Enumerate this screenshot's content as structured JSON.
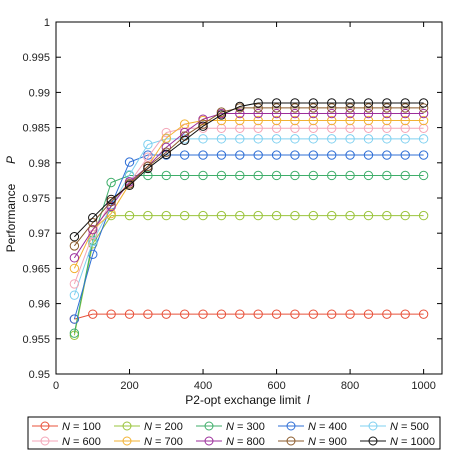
{
  "chart_data": {
    "type": "line",
    "xlabel": "P2-opt exchange limit",
    "xlabel_symbol": "l",
    "ylabel": "Performance",
    "ylabel_symbol": "P",
    "xlim": [
      0,
      1050
    ],
    "ylim": [
      0.95,
      1.0
    ],
    "xticks": [
      0,
      200,
      400,
      600,
      800,
      1000
    ],
    "yticks": [
      0.95,
      0.955,
      0.96,
      0.965,
      0.97,
      0.975,
      0.98,
      0.985,
      0.99,
      0.995,
      1
    ],
    "ytick_labels": [
      "0.95",
      "0.955",
      "0.96",
      "0.965",
      "0.97",
      "0.975",
      "0.98",
      "0.985",
      "0.99",
      "0.995",
      "1"
    ],
    "x": [
      50,
      100,
      150,
      200,
      250,
      300,
      350,
      400,
      450,
      500,
      550,
      600,
      650,
      700,
      750,
      800,
      850,
      900,
      950,
      1000
    ],
    "legend_position": "bottom",
    "series": [
      {
        "name": "N = 100",
        "label_var": "N",
        "label_val": "= 100",
        "color": "#e8513a",
        "values": [
          0.9578,
          0.9585,
          0.9585,
          0.9585,
          0.9585,
          0.9585,
          0.9585,
          0.9585,
          0.9585,
          0.9585,
          0.9585,
          0.9585,
          0.9585,
          0.9585,
          0.9585,
          0.9585,
          0.9585,
          0.9585,
          0.9585,
          0.9585
        ]
      },
      {
        "name": "N = 200",
        "label_var": "N",
        "label_val": "= 200",
        "color": "#9ac43c",
        "values": [
          0.9555,
          0.9685,
          0.9725,
          0.9725,
          0.9725,
          0.9725,
          0.9725,
          0.9725,
          0.9725,
          0.9725,
          0.9725,
          0.9725,
          0.9725,
          0.9725,
          0.9725,
          0.9725,
          0.9725,
          0.9725,
          0.9725,
          0.9725
        ]
      },
      {
        "name": "N = 300",
        "label_var": "N",
        "label_val": "= 300",
        "color": "#3fae6a",
        "values": [
          0.9558,
          0.969,
          0.9772,
          0.9782,
          0.9782,
          0.9782,
          0.9782,
          0.9782,
          0.9782,
          0.9782,
          0.9782,
          0.9782,
          0.9782,
          0.9782,
          0.9782,
          0.9782,
          0.9782,
          0.9782,
          0.9782,
          0.9782
        ]
      },
      {
        "name": "N = 400",
        "label_var": "N",
        "label_val": "= 400",
        "color": "#2f6fd6",
        "values": [
          0.9578,
          0.967,
          0.974,
          0.9801,
          0.9811,
          0.9811,
          0.9811,
          0.9811,
          0.9811,
          0.9811,
          0.9811,
          0.9811,
          0.9811,
          0.9811,
          0.9811,
          0.9811,
          0.9811,
          0.9811,
          0.9811,
          0.9811
        ]
      },
      {
        "name": "N = 500",
        "label_var": "N",
        "label_val": "= 500",
        "color": "#7fd0f0",
        "values": [
          0.9612,
          0.9688,
          0.9738,
          0.9783,
          0.9826,
          0.9834,
          0.9834,
          0.9834,
          0.9834,
          0.9834,
          0.9834,
          0.9834,
          0.9834,
          0.9834,
          0.9834,
          0.9834,
          0.9834,
          0.9834,
          0.9834,
          0.9834
        ]
      },
      {
        "name": "N = 600",
        "label_var": "N",
        "label_val": "= 600",
        "color": "#f4a6b8",
        "values": [
          0.9628,
          0.9698,
          0.9745,
          0.9772,
          0.9808,
          0.9843,
          0.9849,
          0.9849,
          0.9849,
          0.9849,
          0.9849,
          0.9849,
          0.9849,
          0.9849,
          0.9849,
          0.9849,
          0.9849,
          0.9849,
          0.9849,
          0.9849
        ]
      },
      {
        "name": "N = 700",
        "label_var": "N",
        "label_val": "= 700",
        "color": "#f2b233",
        "values": [
          0.965,
          0.9705,
          0.9728,
          0.977,
          0.9795,
          0.9835,
          0.9855,
          0.986,
          0.986,
          0.986,
          0.986,
          0.986,
          0.986,
          0.986,
          0.986,
          0.986,
          0.986,
          0.986,
          0.986,
          0.986
        ]
      },
      {
        "name": "N = 800",
        "label_var": "N",
        "label_val": "= 800",
        "color": "#9b2e9b",
        "values": [
          0.9665,
          0.9705,
          0.9738,
          0.9773,
          0.9795,
          0.9822,
          0.9843,
          0.9862,
          0.987,
          0.987,
          0.987,
          0.987,
          0.987,
          0.987,
          0.987,
          0.987,
          0.987,
          0.987,
          0.987,
          0.987
        ]
      },
      {
        "name": "N = 900",
        "label_var": "N",
        "label_val": "= 900",
        "color": "#8a5a2b",
        "values": [
          0.9682,
          0.9715,
          0.9745,
          0.977,
          0.9795,
          0.9815,
          0.9838,
          0.9855,
          0.9872,
          0.9878,
          0.9878,
          0.9878,
          0.9878,
          0.9878,
          0.9878,
          0.9878,
          0.9878,
          0.9878,
          0.9878,
          0.9878
        ]
      },
      {
        "name": "N = 1000",
        "label_var": "N",
        "label_val": "= 1000",
        "color": "#111111",
        "values": [
          0.9695,
          0.9722,
          0.9748,
          0.9768,
          0.9792,
          0.9812,
          0.9832,
          0.9852,
          0.9868,
          0.988,
          0.9885,
          0.9885,
          0.9885,
          0.9885,
          0.9885,
          0.9885,
          0.9885,
          0.9885,
          0.9885,
          0.9885
        ]
      }
    ]
  }
}
